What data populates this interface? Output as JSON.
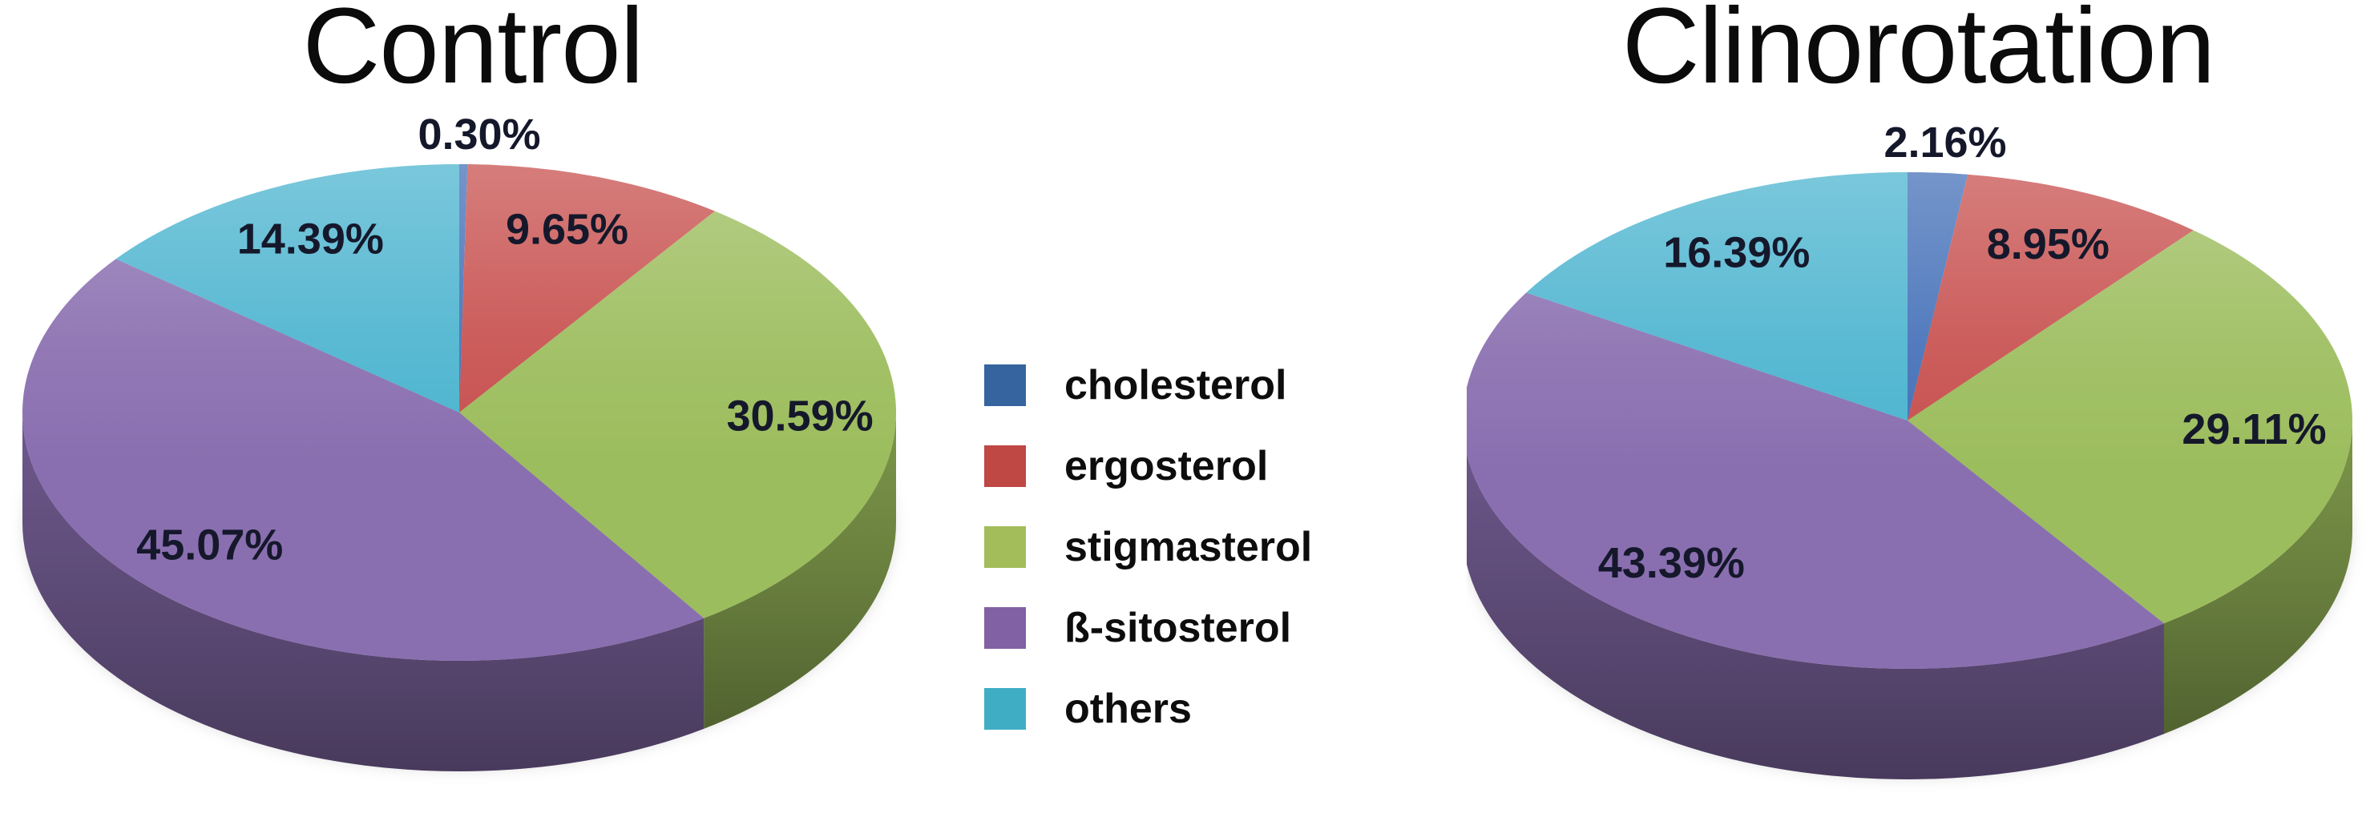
{
  "legend": {
    "items": [
      {
        "label": "cholesterol",
        "swatch_color": "#35649F",
        "pie_color": "#4470B8"
      },
      {
        "label": "ergosterol",
        "swatch_color": "#BF4744",
        "pie_color": "#C7504E"
      },
      {
        "label": "stigmasterol",
        "swatch_color": "#A3BD5B",
        "pie_color": "#9CBD5D"
      },
      {
        "label": "ß-sitosterol",
        "swatch_color": "#8161A3",
        "pie_color": "#8A6FB0"
      },
      {
        "label": "others",
        "swatch_color": "#3FAEC5",
        "pie_color": "#4CB4CF"
      }
    ],
    "position": "center, between the two pies"
  },
  "chart_data": [
    {
      "type": "pie",
      "title": "Control",
      "style": "3d-pie",
      "categories": [
        "cholesterol",
        "ergosterol",
        "stigmasterol",
        "ß-sitosterol",
        "others"
      ],
      "values": [
        0.3,
        9.65,
        30.59,
        45.07,
        14.39
      ],
      "labels": [
        "0.30%",
        "9.65%",
        "30.59%",
        "45.07%",
        "14.39%"
      ],
      "start_angle": "12 o'clock",
      "direction": "clockwise",
      "smallest_slice_label_position": "outside, above pie"
    },
    {
      "type": "pie",
      "title": "Clinorotation",
      "style": "3d-pie",
      "categories": [
        "cholesterol",
        "ergosterol",
        "stigmasterol",
        "ß-sitosterol",
        "others"
      ],
      "values": [
        2.16,
        8.95,
        29.11,
        43.39,
        16.39
      ],
      "labels": [
        "2.16%",
        "8.95%",
        "29.11%",
        "43.39%",
        "16.39%"
      ],
      "start_angle": "12 o'clock",
      "direction": "clockwise",
      "smallest_slice_label_position": "outside, above pie"
    }
  ]
}
